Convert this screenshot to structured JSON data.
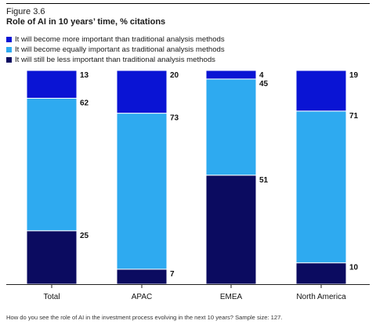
{
  "figure": {
    "label": "Figure 3.6",
    "title": "Role of AI in 10 years’ time, % citations",
    "footnote": "How do you see the role of AI in the investment process evolving in the next 10 years? Sample size: 127."
  },
  "colors": {
    "more": "#0a14d4",
    "equal": "#2eaaf0",
    "less": "#0b0b60",
    "axis": "#222222"
  },
  "chart_data": {
    "type": "bar",
    "stacked": true,
    "categories": [
      "Total",
      "APAC",
      "EMEA",
      "North America"
    ],
    "series": [
      {
        "name": "It will still be less important than traditional analysis methods",
        "key": "less",
        "values": [
          25,
          7,
          51,
          10
        ]
      },
      {
        "name": "It will become equally important as traditional analysis methods",
        "key": "equal",
        "values": [
          62,
          73,
          45,
          71
        ]
      },
      {
        "name": "It will become more important than traditional analysis methods",
        "key": "more",
        "values": [
          13,
          20,
          4,
          19
        ]
      }
    ],
    "legend_order": [
      "more",
      "equal",
      "less"
    ],
    "ylim": [
      0,
      100
    ],
    "grid": false,
    "legend_position": "top-left"
  }
}
